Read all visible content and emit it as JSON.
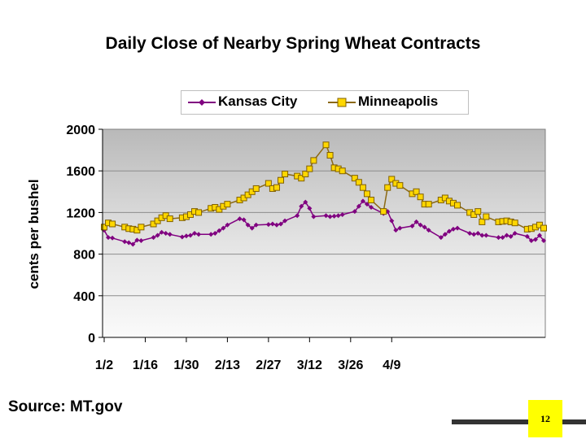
{
  "slide": {
    "source": "Source: MT.gov",
    "page_number": "12"
  },
  "chart_data": {
    "type": "line",
    "title": "Daily Close of Nearby Spring Wheat Contracts",
    "ylabel": "cents per bushel",
    "xlabel": "",
    "ylim": [
      0,
      2000
    ],
    "yticks": [
      0,
      400,
      800,
      1200,
      1600,
      2000
    ],
    "xticks": [
      "1/2",
      "1/16",
      "1/30",
      "2/13",
      "2/27",
      "3/12",
      "3/26",
      "4/9"
    ],
    "grid": true,
    "legend_position": "top",
    "series": [
      {
        "name": "Kansas City",
        "color": "#800080",
        "marker": "diamond",
        "x": [
          0,
          1,
          2,
          5,
          6,
          7,
          8,
          9,
          12,
          13,
          14,
          15,
          16,
          19,
          20,
          21,
          22,
          23,
          26,
          27,
          28,
          29,
          30,
          33,
          34,
          35,
          36,
          37,
          40,
          41,
          42,
          43,
          44,
          47,
          48,
          49,
          50,
          51,
          54,
          55,
          56,
          57,
          58,
          61,
          62,
          63,
          64,
          65,
          68,
          69,
          70,
          71,
          72,
          75,
          76,
          77,
          78,
          79,
          82,
          83,
          84,
          85,
          86,
          89,
          90,
          91,
          92,
          93,
          96,
          97,
          98,
          99,
          100,
          103,
          104,
          105,
          106,
          107
        ],
        "values": [
          1030,
          960,
          955,
          920,
          910,
          895,
          935,
          930,
          960,
          980,
          1010,
          1000,
          990,
          965,
          975,
          980,
          1000,
          990,
          990,
          1000,
          1025,
          1050,
          1080,
          1140,
          1130,
          1080,
          1050,
          1080,
          1085,
          1090,
          1080,
          1090,
          1120,
          1170,
          1260,
          1300,
          1240,
          1160,
          1170,
          1160,
          1165,
          1170,
          1180,
          1210,
          1260,
          1310,
          1280,
          1250,
          1190,
          1210,
          1120,
          1030,
          1050,
          1070,
          1110,
          1080,
          1060,
          1030,
          960,
          990,
          1020,
          1040,
          1050,
          1000,
          990,
          1000,
          980,
          980,
          960,
          960,
          980,
          970,
          1000,
          970,
          930,
          940,
          980,
          930
        ]
      },
      {
        "name": "Minneapolis",
        "color": "#ffd700",
        "marker": "square",
        "x": [
          0,
          1,
          2,
          5,
          6,
          7,
          8,
          9,
          12,
          13,
          14,
          15,
          16,
          19,
          20,
          21,
          22,
          23,
          26,
          27,
          28,
          29,
          30,
          33,
          34,
          35,
          36,
          37,
          40,
          41,
          42,
          43,
          44,
          47,
          48,
          49,
          50,
          51,
          54,
          55,
          56,
          57,
          58,
          61,
          62,
          63,
          64,
          65,
          68,
          69,
          70,
          71,
          72,
          75,
          76,
          77,
          78,
          79,
          82,
          83,
          84,
          85,
          86,
          89,
          90,
          91,
          92,
          93,
          96,
          97,
          98,
          99,
          100,
          103,
          104,
          105,
          106,
          107
        ],
        "values": [
          1060,
          1100,
          1090,
          1060,
          1045,
          1040,
          1030,
          1060,
          1090,
          1120,
          1150,
          1170,
          1140,
          1150,
          1160,
          1180,
          1210,
          1200,
          1240,
          1250,
          1230,
          1260,
          1280,
          1320,
          1340,
          1370,
          1400,
          1430,
          1480,
          1430,
          1440,
          1510,
          1570,
          1550,
          1530,
          1570,
          1620,
          1700,
          1850,
          1750,
          1630,
          1620,
          1600,
          1530,
          1490,
          1440,
          1380,
          1320,
          1210,
          1440,
          1520,
          1480,
          1460,
          1380,
          1400,
          1350,
          1280,
          1280,
          1320,
          1340,
          1310,
          1290,
          1270,
          1200,
          1180,
          1210,
          1110,
          1160,
          1110,
          1115,
          1120,
          1110,
          1100,
          1040,
          1045,
          1060,
          1080,
          1050
        ]
      }
    ]
  }
}
